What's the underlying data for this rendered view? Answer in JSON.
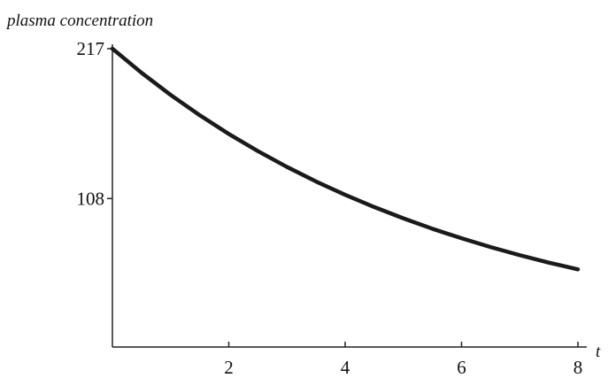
{
  "chart_data": {
    "type": "line",
    "title": "",
    "xlabel": "t",
    "ylabel": "plasma concentration",
    "xlim": [
      0,
      8
    ],
    "ylim": [
      0,
      217
    ],
    "xticks": [
      2,
      4,
      6,
      8
    ],
    "yticks": [
      108,
      217
    ],
    "xtick_labels": [
      "2",
      "4",
      "6",
      "8"
    ],
    "ytick_labels": [
      "108",
      "217"
    ],
    "grid": false,
    "legend": "none",
    "series": [
      {
        "x": [
          0,
          0.5,
          1,
          1.5,
          2,
          2.5,
          3,
          3.5,
          4,
          4.5,
          5,
          5.5,
          6,
          6.5,
          7,
          7.5,
          8
        ],
        "y": [
          217,
          199.5,
          183.4,
          168.6,
          155.0,
          142.5,
          131.0,
          120.4,
          110.7,
          101.8,
          93.6,
          86.0,
          79.1,
          72.7,
          66.8,
          61.4,
          56.5
        ]
      }
    ],
    "colors": {
      "line": "#1a1a1a",
      "axis": "#222222"
    }
  }
}
